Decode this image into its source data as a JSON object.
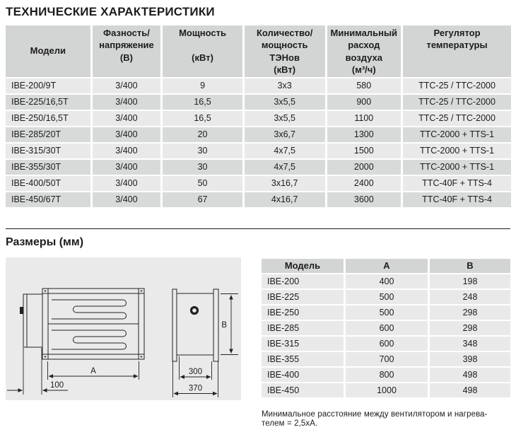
{
  "page": {
    "title": "ТЕХНИЧЕСКИЕ ХАРАКТЕРИСТИКИ"
  },
  "specs_table": {
    "header": [
      {
        "lines": [
          "Модели"
        ],
        "valign": "middle"
      },
      {
        "lines": [
          "Фазность/",
          "напряжение",
          "(В)"
        ]
      },
      {
        "lines": [
          "Мощность",
          "",
          "(кВт)"
        ]
      },
      {
        "lines": [
          "Количество/",
          "мощность",
          "ТЭНов",
          "(кВт)"
        ]
      },
      {
        "lines": [
          "Минимальный",
          "расход",
          "воздуха",
          "(м³/ч)"
        ]
      },
      {
        "lines": [
          "Регулятор",
          "температуры"
        ]
      }
    ],
    "rows": [
      [
        "IBE-200/9T",
        "3/400",
        "9",
        "3x3",
        "580",
        "TTC-25 / TTC-2000"
      ],
      [
        "IBE-225/16,5T",
        "3/400",
        "16,5",
        "3x5,5",
        "900",
        "TTC-25 / TTC-2000"
      ],
      [
        "IBE-250/16,5T",
        "3/400",
        "16,5",
        "3x5,5",
        "1100",
        "TTC-25 / TTC-2000"
      ],
      [
        "IBE-285/20T",
        "3/400",
        "20",
        "3x6,7",
        "1300",
        "TTC-2000 + TTS-1"
      ],
      [
        "IBE-315/30T",
        "3/400",
        "30",
        "4x7,5",
        "1500",
        "TTC-2000 + TTS-1"
      ],
      [
        "IBE-355/30T",
        "3/400",
        "30",
        "4x7,5",
        "2000",
        "TTC-2000 + TTS-1"
      ],
      [
        "IBE-400/50T",
        "3/400",
        "50",
        "3x16,7",
        "2400",
        "TTC-40F + TTS-4"
      ],
      [
        "IBE-450/67T",
        "3/400",
        "67",
        "4x16,7",
        "3600",
        "TTC-40F + TTS-4"
      ]
    ]
  },
  "dimensions": {
    "title": "Размеры (мм)",
    "table": {
      "header": [
        "Модель",
        "A",
        "B"
      ],
      "rows": [
        [
          "IBE-200",
          "400",
          "198"
        ],
        [
          "IBE-225",
          "500",
          "248"
        ],
        [
          "IBE-250",
          "500",
          "298"
        ],
        [
          "IBE-285",
          "600",
          "298"
        ],
        [
          "IBE-315",
          "600",
          "348"
        ],
        [
          "IBE-355",
          "700",
          "398"
        ],
        [
          "IBE-400",
          "800",
          "498"
        ],
        [
          "IBE-450",
          "1000",
          "498"
        ]
      ]
    },
    "drawing": {
      "label_a": "A",
      "label_b": "B",
      "label_offset": "100",
      "label_inner_width": "300",
      "label_outer_width": "370"
    },
    "note_lines": [
      "Минимальное расстояние между вентилятором и нагрева-",
      "телем = 2,5xA."
    ]
  },
  "colors": {
    "text": "#1c1c1c",
    "table_header_bg": "#d3d5d4",
    "row_light_bg": "#e8e9e8",
    "row_dark_bg": "#d8dad9",
    "drawing_bg": "#e9eae9",
    "line": "#222222"
  }
}
